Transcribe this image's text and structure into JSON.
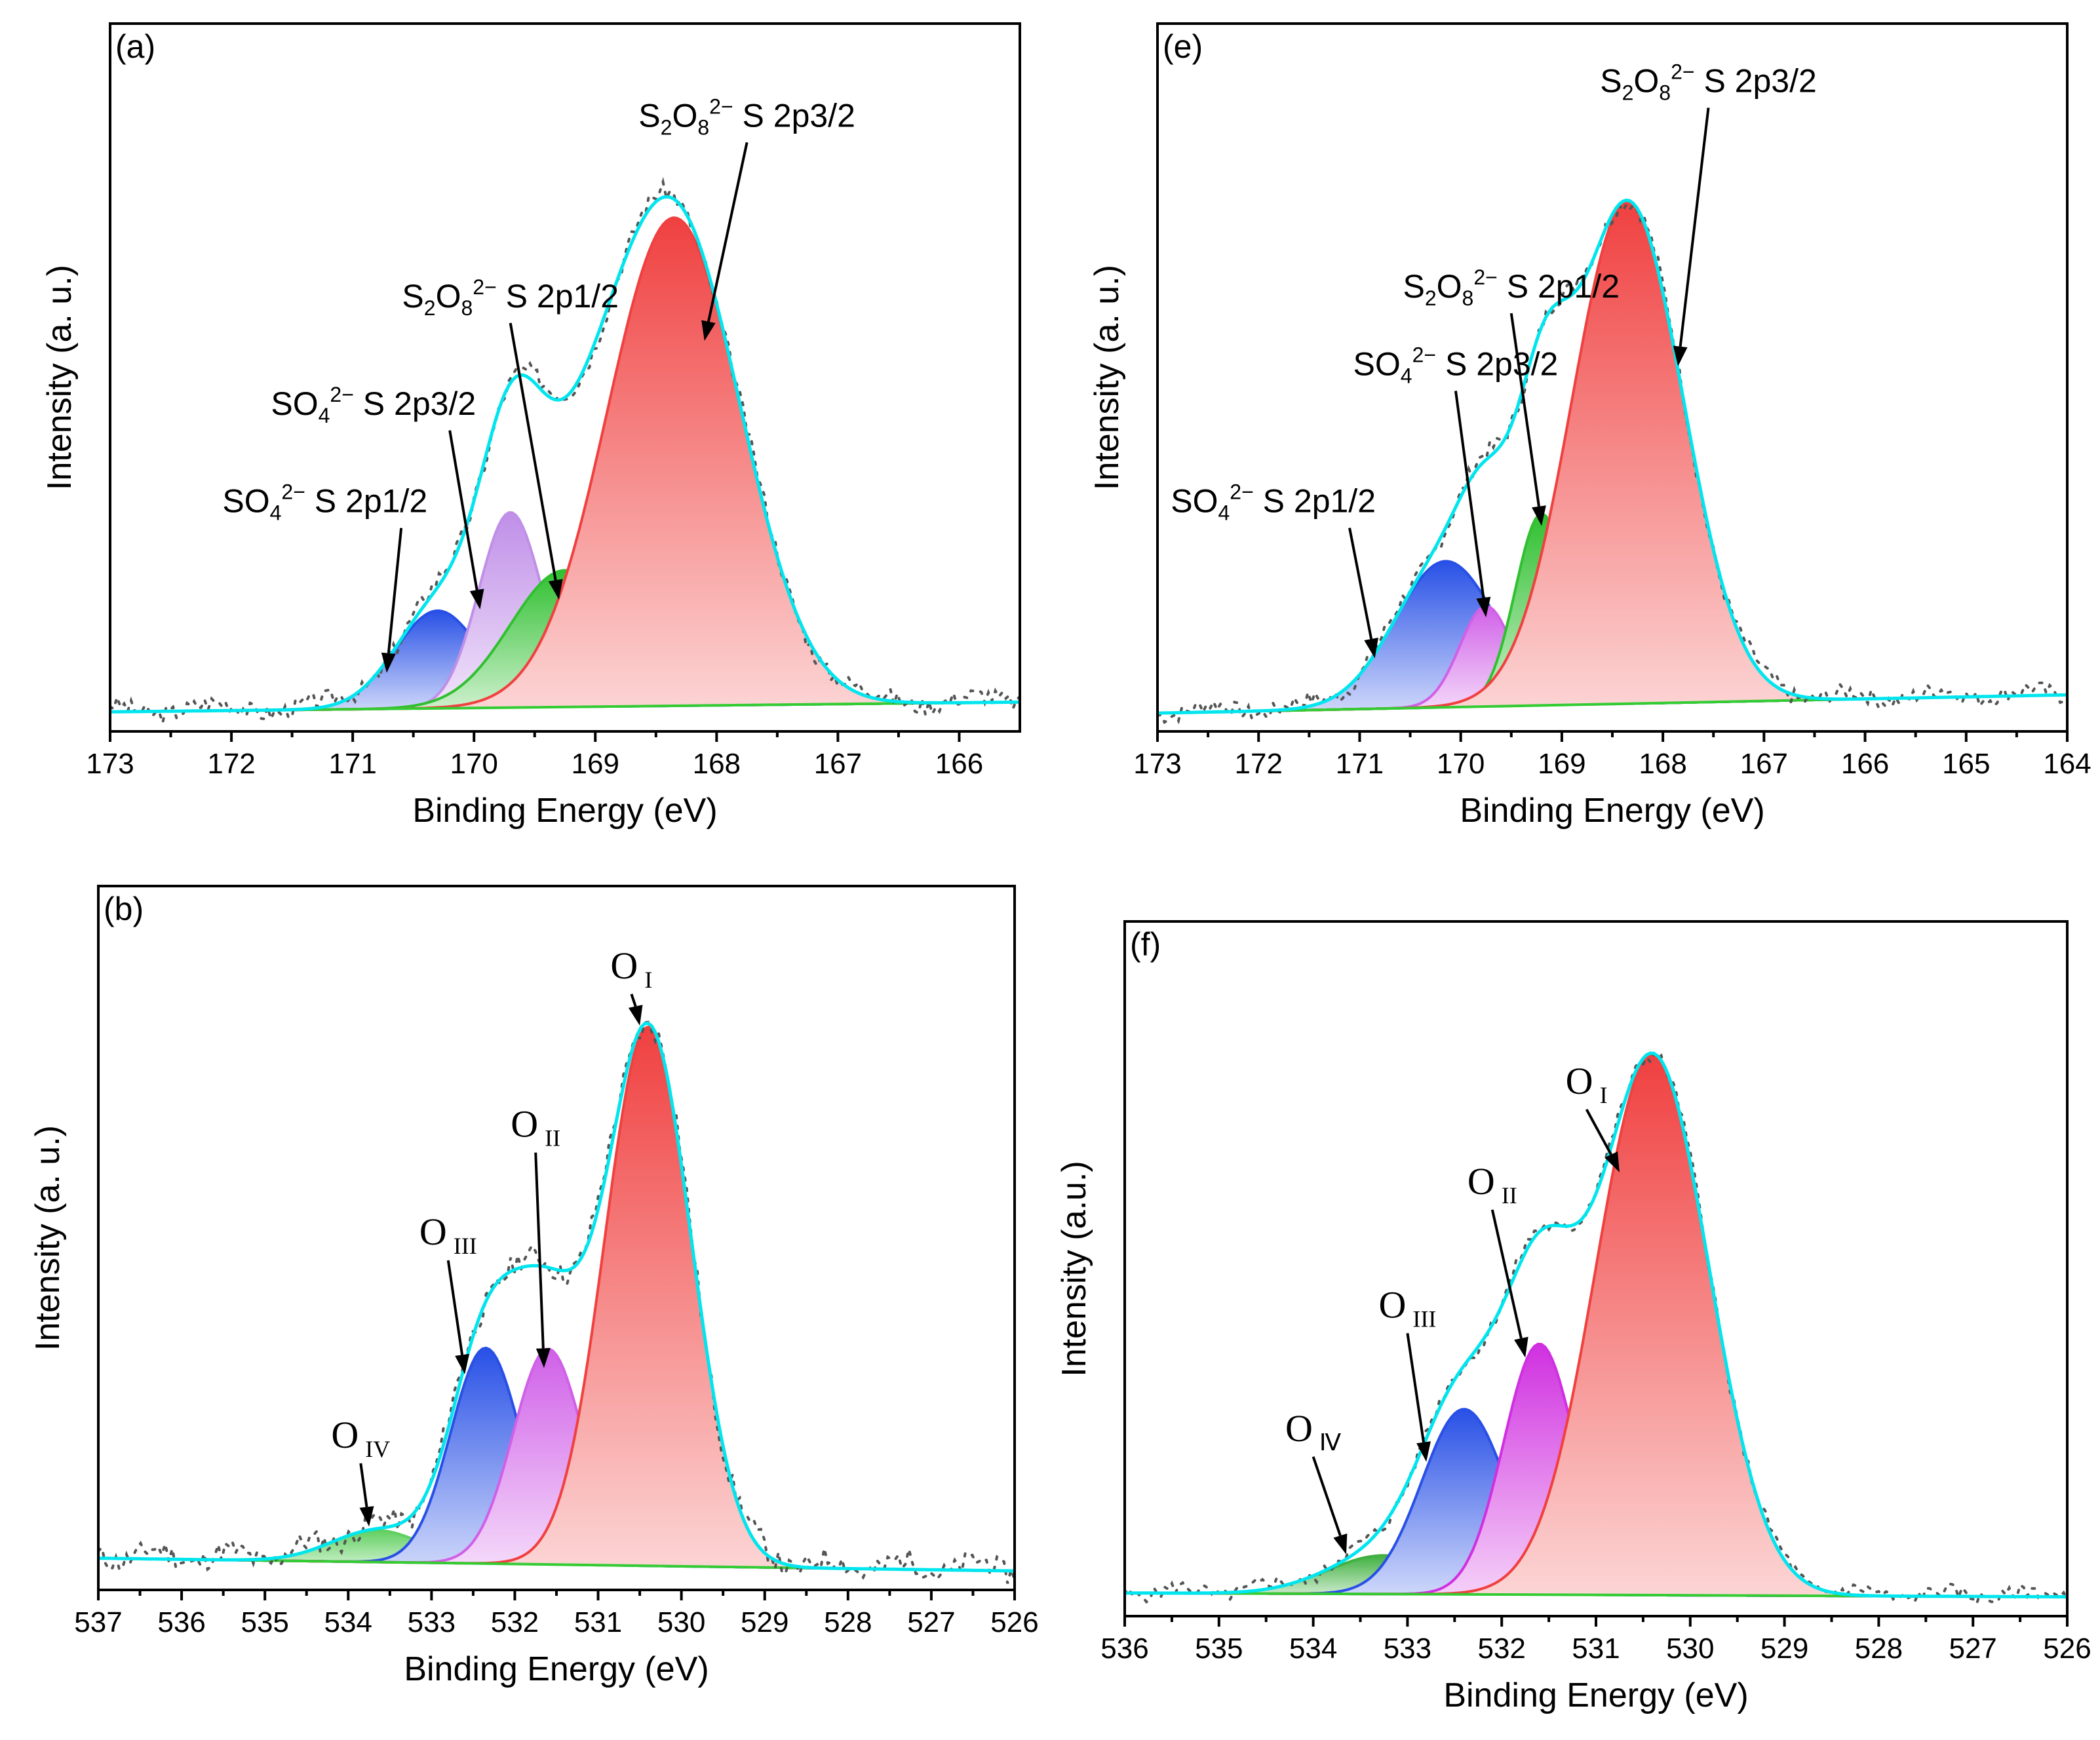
{
  "chart_data": [
    {
      "id": "a",
      "type": "area",
      "panel_label": "(a)",
      "xlabel": "Binding Energy (eV)",
      "ylabel": "Intensity (a. u.)",
      "xlim": [
        173,
        165.5
      ],
      "x_ticks": [
        "173",
        "172",
        "171",
        "170",
        "169",
        "168",
        "167",
        "166"
      ],
      "baseline": [
        0.04,
        0.06
      ],
      "envelope_color": "#00e5ee",
      "raw_color": "#555555",
      "peaks": [
        {
          "name": "SO4 2- S 2p1/2",
          "center": 170.3,
          "height": 0.2,
          "sigma": 0.35,
          "color": "#2850e6",
          "label_parts": [
            {
              "t": "SO"
            },
            {
              "t": "4",
              "sub": true
            },
            {
              "t": "2−",
              "sup": true
            },
            {
              "t": " S 2p1/2"
            }
          ],
          "label_anchor": "right",
          "arrow_from": [
            170.6,
            0.43
          ],
          "arrow_to": [
            170.72,
            0.12
          ]
        },
        {
          "name": "SO4 2- S 2p3/2",
          "center": 169.7,
          "height": 0.4,
          "sigma": 0.26,
          "color": "#c08fe8",
          "label_parts": [
            {
              "t": "SO"
            },
            {
              "t": "4",
              "sub": true
            },
            {
              "t": "2−",
              "sup": true
            },
            {
              "t": " S 2p3/2"
            }
          ],
          "label_anchor": "right",
          "arrow_from": [
            170.2,
            0.63
          ],
          "arrow_to": [
            169.95,
            0.25
          ]
        },
        {
          "name": "S2O8 2- S 2p1/2",
          "center": 169.25,
          "height": 0.28,
          "sigma": 0.45,
          "color": "#30c030",
          "label_parts": [
            {
              "t": "S"
            },
            {
              "t": "2",
              "sub": true
            },
            {
              "t": "O"
            },
            {
              "t": "8",
              "sub": true
            },
            {
              "t": "2−",
              "sup": true
            },
            {
              "t": " S 2p1/2"
            }
          ],
          "label_anchor": "middle",
          "arrow_from": [
            169.7,
            0.85
          ],
          "arrow_to": [
            169.3,
            0.27
          ]
        },
        {
          "name": "S2O8 2- S 2p3/2",
          "center": 168.35,
          "height": 1.0,
          "sigma": 0.55,
          "color": "#f04040",
          "label_parts": [
            {
              "t": "S"
            },
            {
              "t": "2",
              "sub": true
            },
            {
              "t": "O"
            },
            {
              "t": "8",
              "sub": true
            },
            {
              "t": "2−",
              "sup": true
            },
            {
              "t": " S 2p3/2"
            }
          ],
          "label_anchor": "middle",
          "arrow_from": [
            167.75,
            1.22
          ],
          "arrow_to": [
            168.1,
            0.8
          ]
        }
      ],
      "ylim": [
        0,
        1.45
      ],
      "noise_seed": 3
    },
    {
      "id": "e",
      "type": "area",
      "panel_label": "(e)",
      "xlabel": "Binding Energy (eV)",
      "ylabel": "Intensity (a. u.)",
      "xlim": [
        173,
        164
      ],
      "x_ticks": [
        "173",
        "172",
        "171",
        "170",
        "169",
        "168",
        "167",
        "166",
        "165",
        "164"
      ],
      "baseline": [
        0.04,
        0.08
      ],
      "envelope_color": "#00e5ee",
      "raw_color": "#555555",
      "peaks": [
        {
          "name": "SO4 2- S 2p1/2",
          "center": 170.15,
          "height": 0.32,
          "sigma": 0.5,
          "color": "#2850e6",
          "label_parts": [
            {
              "t": "SO"
            },
            {
              "t": "4",
              "sub": true
            },
            {
              "t": "2−",
              "sup": true
            },
            {
              "t": " S 2p1/2"
            }
          ],
          "label_anchor": "right",
          "arrow_from": [
            171.1,
            0.46
          ],
          "arrow_to": [
            170.85,
            0.16
          ]
        },
        {
          "name": "SO4 2- S 2p3/2",
          "center": 169.75,
          "height": 0.22,
          "sigma": 0.26,
          "color": "#d060e8",
          "label_parts": [
            {
              "t": "SO"
            },
            {
              "t": "4",
              "sub": true
            },
            {
              "t": "2−",
              "sup": true
            },
            {
              "t": " S 2p3/2"
            }
          ],
          "label_anchor": "middle",
          "arrow_from": [
            170.05,
            0.76
          ],
          "arrow_to": [
            169.75,
            0.25
          ]
        },
        {
          "name": "S2O8 2- S 2p1/2",
          "center": 169.2,
          "height": 0.42,
          "sigma": 0.26,
          "color": "#30c030",
          "label_parts": [
            {
              "t": "S"
            },
            {
              "t": "2",
              "sub": true
            },
            {
              "t": "O"
            },
            {
              "t": "8",
              "sub": true
            },
            {
              "t": "2−",
              "sup": true
            },
            {
              "t": " S 2p1/2"
            }
          ],
          "label_anchor": "middle",
          "arrow_from": [
            169.5,
            0.93
          ],
          "arrow_to": [
            169.2,
            0.45
          ]
        },
        {
          "name": "S2O8 2- S 2p3/2",
          "center": 168.35,
          "height": 1.1,
          "sigma": 0.55,
          "color": "#f04040",
          "label_parts": [
            {
              "t": "S"
            },
            {
              "t": "2",
              "sub": true
            },
            {
              "t": "O"
            },
            {
              "t": "8",
              "sub": true
            },
            {
              "t": "2−",
              "sup": true
            },
            {
              "t": " S 2p3/2"
            }
          ],
          "label_anchor": "middle",
          "arrow_from": [
            167.55,
            1.38
          ],
          "arrow_to": [
            167.85,
            0.8
          ]
        }
      ],
      "ylim": [
        0,
        1.55
      ],
      "noise_seed": 7
    },
    {
      "id": "b",
      "type": "area",
      "panel_label": "(b)",
      "xlabel": "Binding Energy (eV)",
      "ylabel": "Intensity (a. u.)",
      "xlim": [
        537,
        526
      ],
      "x_ticks": [
        "537",
        "536",
        "535",
        "534",
        "533",
        "532",
        "531",
        "530",
        "529",
        "528",
        "527",
        "526"
      ],
      "baseline": [
        0.02,
        0.0
      ],
      "envelope_color": "#00e5ee",
      "raw_color": "#555555",
      "peaks": [
        {
          "name": "O IV",
          "center": 533.65,
          "height": 0.05,
          "sigma": 0.55,
          "color": "#60d060",
          "label_parts": [
            {
              "t": "O",
              "o": true
            },
            {
              "t": "IV",
              "osub": true
            }
          ],
          "label_anchor": "middle",
          "arrow_from": [
            533.85,
            0.18
          ],
          "arrow_to": [
            533.75,
            0.07
          ]
        },
        {
          "name": "O III",
          "center": 532.35,
          "height": 0.34,
          "sigma": 0.42,
          "color": "#2850e6",
          "label_parts": [
            {
              "t": "O",
              "o": true
            },
            {
              "t": "III",
              "osub": true
            }
          ],
          "label_anchor": "middle",
          "arrow_from": [
            532.8,
            0.5
          ],
          "arrow_to": [
            532.6,
            0.31
          ]
        },
        {
          "name": "O II",
          "center": 531.6,
          "height": 0.34,
          "sigma": 0.42,
          "color": "#d060e8",
          "label_parts": [
            {
              "t": "O",
              "o": true
            },
            {
              "t": "II",
              "osub": true
            }
          ],
          "label_anchor": "middle",
          "arrow_from": [
            531.75,
            0.67
          ],
          "arrow_to": [
            531.65,
            0.32
          ]
        },
        {
          "name": "O I",
          "center": 530.4,
          "height": 0.85,
          "sigma": 0.52,
          "color": "#f04040",
          "label_parts": [
            {
              "t": "O",
              "o": true
            },
            {
              "t": "I",
              "osub": true
            }
          ],
          "label_anchor": "middle",
          "arrow_from": [
            530.6,
            0.92
          ],
          "arrow_to": [
            530.5,
            0.86
          ]
        }
      ],
      "ylim": [
        -0.03,
        1.08
      ],
      "noise_seed": 11
    },
    {
      "id": "f",
      "type": "area",
      "panel_label": "(f)",
      "xlabel": "Binding Energy (eV)",
      "ylabel": "Intensity (a.u.)",
      "xlim": [
        536,
        526
      ],
      "x_ticks": [
        "536",
        "535",
        "534",
        "533",
        "532",
        "531",
        "530",
        "529",
        "528",
        "527",
        "526"
      ],
      "baseline": [
        0.01,
        0.0
      ],
      "envelope_color": "#00e5ee",
      "raw_color": "#555555",
      "peaks": [
        {
          "name": "O IV",
          "center": 533.25,
          "height": 0.1,
          "sigma": 0.6,
          "color": "#40b040",
          "label_parts": [
            {
              "t": "O",
              "o": true
            },
            {
              "t": "Ⅳ",
              "osub": true
            }
          ],
          "label_anchor": "middle",
          "arrow_from": [
            534.0,
            0.38
          ],
          "arrow_to": [
            533.65,
            0.11
          ]
        },
        {
          "name": "O III",
          "center": 532.4,
          "height": 0.48,
          "sigma": 0.45,
          "color": "#2850e6",
          "label_parts": [
            {
              "t": "O",
              "o": true
            },
            {
              "t": "III",
              "osub": true
            }
          ],
          "label_anchor": "middle",
          "arrow_from": [
            533.0,
            0.7
          ],
          "arrow_to": [
            532.8,
            0.35
          ]
        },
        {
          "name": "O II",
          "center": 531.6,
          "height": 0.65,
          "sigma": 0.38,
          "color": "#d030e0",
          "label_parts": [
            {
              "t": "O",
              "o": true
            },
            {
              "t": "II",
              "osub": true
            }
          ],
          "label_anchor": "middle",
          "arrow_from": [
            532.1,
            1.02
          ],
          "arrow_to": [
            531.75,
            0.62
          ]
        },
        {
          "name": "O I",
          "center": 530.4,
          "height": 1.4,
          "sigma": 0.6,
          "color": "#f04040",
          "label_parts": [
            {
              "t": "O",
              "o": true
            },
            {
              "t": "I",
              "osub": true
            }
          ],
          "label_anchor": "middle",
          "arrow_from": [
            531.1,
            1.28
          ],
          "arrow_to": [
            530.75,
            1.1
          ]
        }
      ],
      "ylim": [
        -0.05,
        1.75
      ],
      "noise_seed": 5
    }
  ]
}
